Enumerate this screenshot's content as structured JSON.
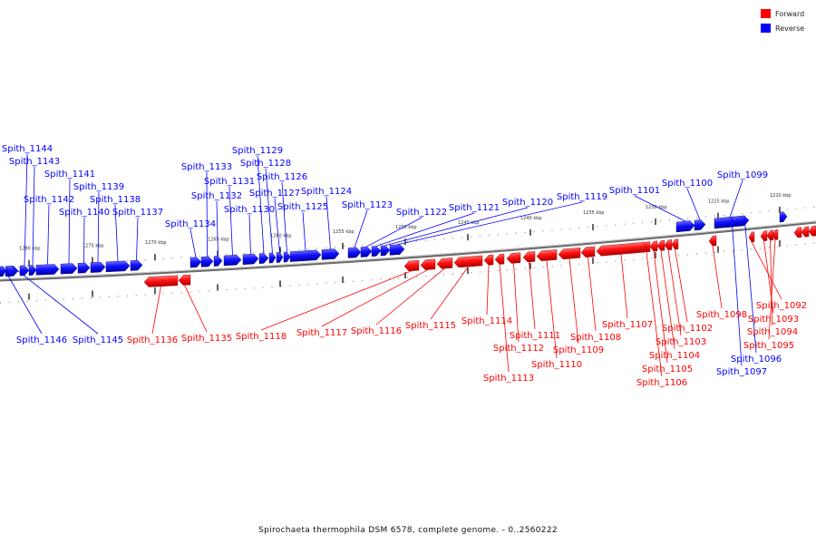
{
  "title": "Spirochaeta thermophila DSM 6578, complete genome. - 0..2560222",
  "legend": [
    {
      "label": "Forward",
      "color": "#ff0000"
    },
    {
      "label": "Reverse",
      "color": "#0000ff"
    }
  ],
  "colors": {
    "forward": "#ff0000",
    "reverse": "#0000ff",
    "backbone": "#666666"
  },
  "ticks": [
    "1280 kbp",
    "1275 kbp",
    "1270 kbp",
    "1265 kbp",
    "1260 kbp",
    "1255 kbp",
    "1250 kbp",
    "1245 kbp",
    "1240 kbp",
    "1235 kbp",
    "1230 kbp",
    "1225 kbp",
    "1220 kbp"
  ],
  "genes": [
    {
      "name": "Spith_1092",
      "strand": "forward"
    },
    {
      "name": "Spith_1093",
      "strand": "forward"
    },
    {
      "name": "Spith_1094",
      "strand": "forward"
    },
    {
      "name": "Spith_1095",
      "strand": "forward"
    },
    {
      "name": "Spith_1096",
      "strand": "reverse"
    },
    {
      "name": "Spith_1097",
      "strand": "reverse"
    },
    {
      "name": "Spith_1098",
      "strand": "forward"
    },
    {
      "name": "Spith_1099",
      "strand": "reverse"
    },
    {
      "name": "Spith_1100",
      "strand": "reverse"
    },
    {
      "name": "Spith_1101",
      "strand": "reverse"
    },
    {
      "name": "Spith_1102",
      "strand": "forward"
    },
    {
      "name": "Spith_1103",
      "strand": "forward"
    },
    {
      "name": "Spith_1104",
      "strand": "forward"
    },
    {
      "name": "Spith_1105",
      "strand": "forward"
    },
    {
      "name": "Spith_1106",
      "strand": "forward"
    },
    {
      "name": "Spith_1107",
      "strand": "forward"
    },
    {
      "name": "Spith_1108",
      "strand": "forward"
    },
    {
      "name": "Spith_1109",
      "strand": "forward"
    },
    {
      "name": "Spith_1110",
      "strand": "forward"
    },
    {
      "name": "Spith_1111",
      "strand": "forward"
    },
    {
      "name": "Spith_1112",
      "strand": "forward"
    },
    {
      "name": "Spith_1113",
      "strand": "forward"
    },
    {
      "name": "Spith_1114",
      "strand": "forward"
    },
    {
      "name": "Spith_1115",
      "strand": "forward"
    },
    {
      "name": "Spith_1116",
      "strand": "forward"
    },
    {
      "name": "Spith_1117",
      "strand": "forward"
    },
    {
      "name": "Spith_1118",
      "strand": "forward"
    },
    {
      "name": "Spith_1119",
      "strand": "reverse"
    },
    {
      "name": "Spith_1120",
      "strand": "reverse"
    },
    {
      "name": "Spith_1121",
      "strand": "reverse"
    },
    {
      "name": "Spith_1122",
      "strand": "reverse"
    },
    {
      "name": "Spith_1123",
      "strand": "reverse"
    },
    {
      "name": "Spith_1124",
      "strand": "reverse"
    },
    {
      "name": "Spith_1125",
      "strand": "reverse"
    },
    {
      "name": "Spith_1126",
      "strand": "reverse"
    },
    {
      "name": "Spith_1127",
      "strand": "reverse"
    },
    {
      "name": "Spith_1128",
      "strand": "reverse"
    },
    {
      "name": "Spith_1129",
      "strand": "reverse"
    },
    {
      "name": "Spith_1130",
      "strand": "reverse"
    },
    {
      "name": "Spith_1131",
      "strand": "reverse"
    },
    {
      "name": "Spith_1132",
      "strand": "reverse"
    },
    {
      "name": "Spith_1133",
      "strand": "reverse"
    },
    {
      "name": "Spith_1134",
      "strand": "reverse"
    },
    {
      "name": "Spith_1135",
      "strand": "forward"
    },
    {
      "name": "Spith_1136",
      "strand": "forward"
    },
    {
      "name": "Spith_1137",
      "strand": "reverse"
    },
    {
      "name": "Spith_1138",
      "strand": "reverse"
    },
    {
      "name": "Spith_1139",
      "strand": "reverse"
    },
    {
      "name": "Spith_1140",
      "strand": "reverse"
    },
    {
      "name": "Spith_1141",
      "strand": "reverse"
    },
    {
      "name": "Spith_1142",
      "strand": "reverse"
    },
    {
      "name": "Spith_1143",
      "strand": "reverse"
    },
    {
      "name": "Spith_1144",
      "strand": "reverse"
    },
    {
      "name": "Spith_1145",
      "strand": "reverse"
    },
    {
      "name": "Spith_1146",
      "strand": "reverse"
    }
  ]
}
